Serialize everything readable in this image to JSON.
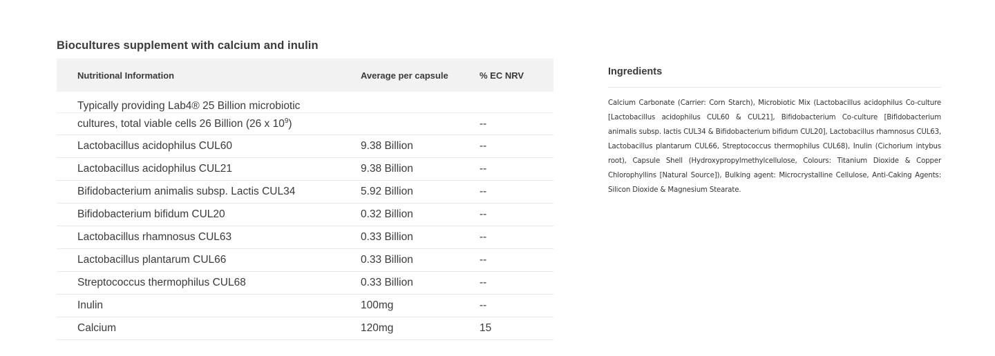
{
  "nutrition": {
    "title": "Biocultures supplement with calcium and inulin",
    "headers": {
      "col1": "Nutritional Information",
      "col2": "Average per capsule",
      "col3": "% EC NRV"
    },
    "first_row": {
      "line1": "Typically providing Lab4® 25 Billion microbiotic",
      "line2_text": "cultures, total viable cells 26 Billion (26 x 10",
      "line2_sup": "9",
      "line2_end": ")",
      "nrv": "--"
    },
    "rows": [
      {
        "name": "Lactobacillus acidophilus CUL60",
        "amount": "9.38 Billion",
        "nrv": "--"
      },
      {
        "name": "Lactobacillus acidophilus CUL21",
        "amount": "9.38 Billion",
        "nrv": "--"
      },
      {
        "name": "Bifidobacterium animalis subsp. Lactis CUL34",
        "amount": "5.92 Billion",
        "nrv": "--"
      },
      {
        "name": "Bifidobacterium bifidum CUL20",
        "amount": "0.32 Billion",
        "nrv": "--"
      },
      {
        "name": "Lactobacillus rhamnosus CUL63",
        "amount": "0.33 Billion",
        "nrv": "--"
      },
      {
        "name": "Lactobacillus plantarum CUL66",
        "amount": "0.33 Billion",
        "nrv": "--"
      },
      {
        "name": "Streptococcus thermophilus CUL68",
        "amount": "0.33 Billion",
        "nrv": "--"
      },
      {
        "name": "Inulin",
        "amount": "100mg",
        "nrv": "--"
      },
      {
        "name": "Calcium",
        "amount": "120mg",
        "nrv": "15"
      }
    ]
  },
  "ingredients": {
    "title": "Ingredients",
    "text": "Calcium Carbonate (Carrier: Corn Starch), Microbiotic Mix (Lactobacillus acidophilus Co-culture [Lactobacillus acidophilus CUL60 & CUL21], Bifidobacterium Co-culture [Bifidobacterium animalis subsp. lactis CUL34 & Bifidobacterium bifidum CUL20], Lactobacillus rhamnosus CUL63, Lactobacillus plantarum CUL66, Streptococcus thermophilus CUL68), Inulin (Cichorium intybus root), Capsule Shell (Hydroxypropylmethylcellulose, Colours: Titanium Dioxide & Copper Chlorophyllins [Natural Source]), Bulking agent: Microcrystalline Cellulose, Anti-Caking Agents: Silicon Dioxide & Magnesium Stearate."
  }
}
